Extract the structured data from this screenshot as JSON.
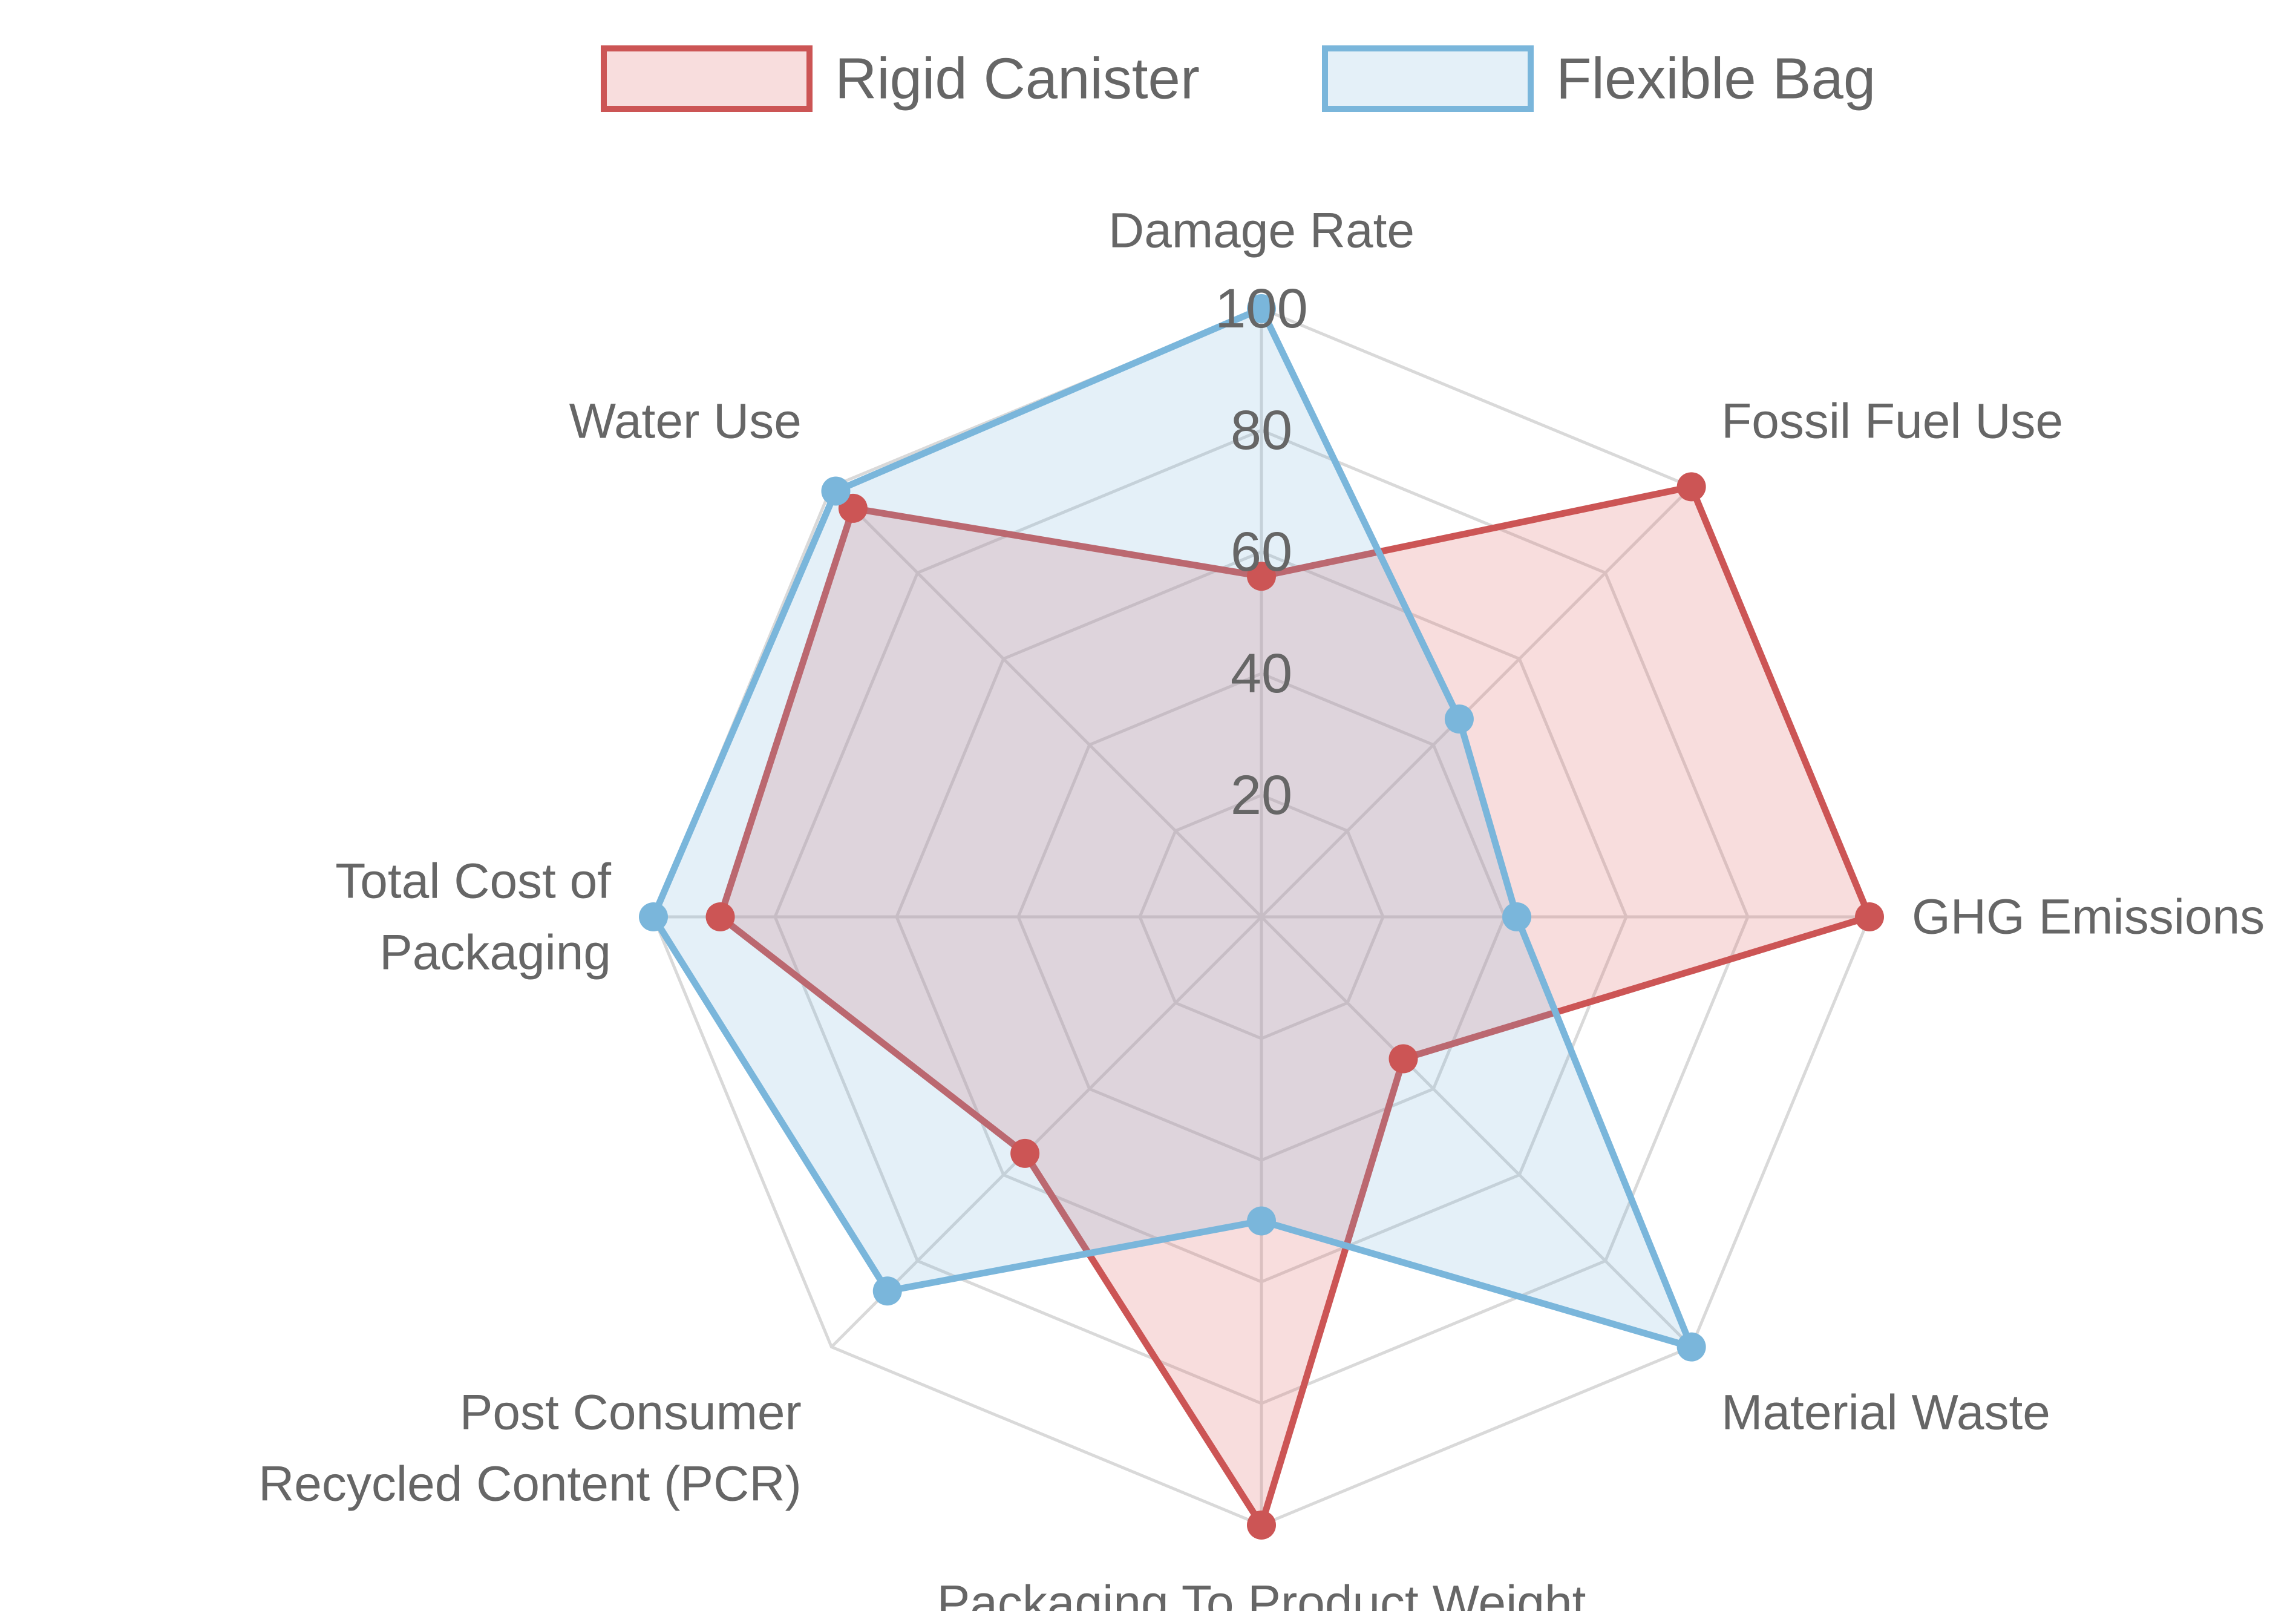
{
  "chart_data": {
    "type": "radar",
    "axes": [
      "Damage Rate",
      "Fossil Fuel Use",
      "GHG Emissions",
      "Material Waste",
      "Packaging To Product Weight",
      "Post Consumer Recycled Content (PCR)",
      "Total Cost of Packaging",
      "Water Use"
    ],
    "axis_label_lines": [
      [
        "Damage Rate"
      ],
      [
        "Fossil Fuel Use"
      ],
      [
        "GHG Emissions"
      ],
      [
        "Material Waste"
      ],
      [
        "Packaging To Product Weight"
      ],
      [
        "Post Consumer",
        "Recycled Content (PCR)"
      ],
      [
        "Total Cost of",
        "Packaging"
      ],
      [
        "Water Use"
      ]
    ],
    "r_range": [
      0,
      100
    ],
    "r_ticks": [
      20,
      40,
      60,
      80,
      100
    ],
    "grid": true,
    "legend_position": "top",
    "series": [
      {
        "name": "Rigid Canister",
        "color": "#cc5555",
        "fill": "rgba(226,120,120,0.25)",
        "values": [
          56,
          100,
          100,
          33,
          100,
          55,
          89,
          95
        ]
      },
      {
        "name": "Flexible Bag",
        "color": "#7ab6db",
        "fill": "rgba(122,182,219,0.2)",
        "values": [
          100,
          46,
          42,
          100,
          50,
          87,
          100,
          99
        ]
      }
    ]
  }
}
